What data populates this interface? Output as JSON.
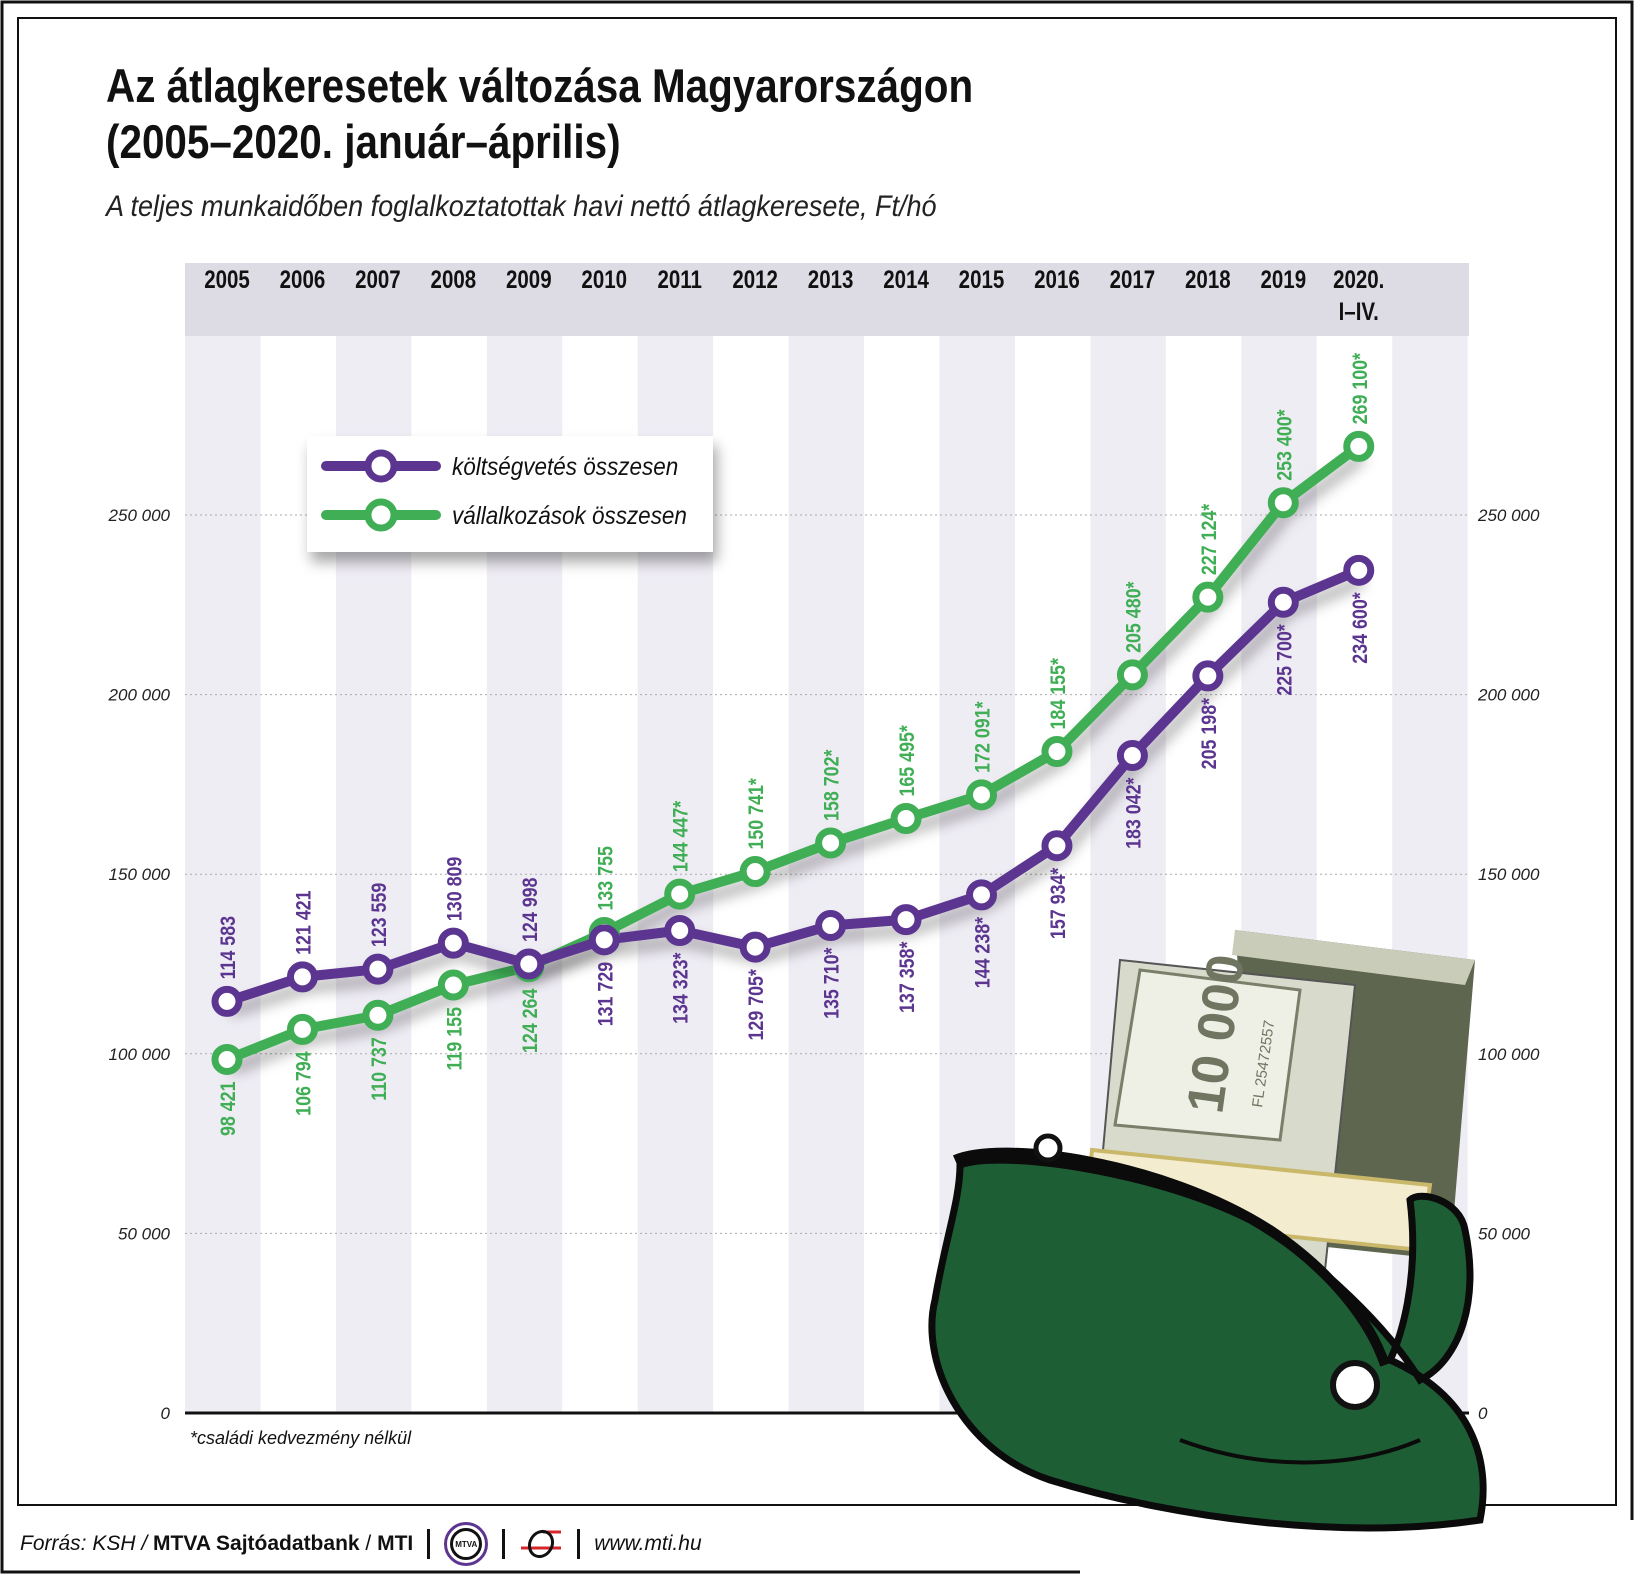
{
  "header": {
    "title_line1": "Az átlagkeresetek változása Magyarországon",
    "title_line2": "(2005–2020. január–április)",
    "subtitle": "A teljes munkaidőben foglalkoztatottak havi nettó átlagkeresete, Ft/hó"
  },
  "chart_data": {
    "type": "line",
    "categories": [
      "2005",
      "2006",
      "2007",
      "2008",
      "2009",
      "2010",
      "2011",
      "2012",
      "2013",
      "2014",
      "2015",
      "2016",
      "2017",
      "2018",
      "2019",
      "2020."
    ],
    "category_sublabels": {
      "2020.": "I–IV."
    },
    "ylim": [
      0,
      250000
    ],
    "yticks": [
      0,
      50000,
      100000,
      150000,
      200000,
      250000
    ],
    "ytick_labels": [
      "0",
      "50 000",
      "100 000",
      "150 000",
      "200 000",
      "250 000"
    ],
    "grid": true,
    "legend_position": "top-left",
    "series": [
      {
        "name": "költségvetés összesen",
        "color": "#5b3590",
        "values": [
          114583,
          121421,
          123559,
          130809,
          124998,
          131729,
          134323,
          129705,
          135710,
          137358,
          144238,
          157934,
          183042,
          205198,
          225700,
          234600
        ],
        "labels": [
          "114 583",
          "121 421",
          "123 559",
          "130 809",
          "124 998",
          "131 729",
          "134 323*",
          "129 705*",
          "135 710*",
          "137 358*",
          "144 238*",
          "157 934*",
          "183 042*",
          "205 198*",
          "225 700*",
          "234 600*"
        ]
      },
      {
        "name": "vállalkozások összesen",
        "color": "#3fae55",
        "values": [
          98421,
          106794,
          110737,
          119155,
          124264,
          133755,
          144447,
          150741,
          158702,
          165495,
          172091,
          184155,
          205480,
          227124,
          253400,
          269100
        ],
        "labels": [
          "98 421",
          "106 794",
          "110 737",
          "119 155",
          "124 264",
          "133 755",
          "144 447*",
          "150 741*",
          "158 702*",
          "165 495*",
          "172 091*",
          "184 155*",
          "205 480*",
          "227 124*",
          "253 400*",
          "269 100*"
        ]
      }
    ],
    "footnote": "*családi kedvezmény nélkül"
  },
  "footer": {
    "source_prefix": "Forrás: KSH /",
    "source_bold": "MTVA Sajtóadatbank",
    "source_sep": "/",
    "source_mti": "MTI",
    "logo_text": "MTVA",
    "url": "www.mti.hu"
  },
  "illustration": {
    "banknote_text": "10 000",
    "banknote_serial": "FL 25472557"
  }
}
